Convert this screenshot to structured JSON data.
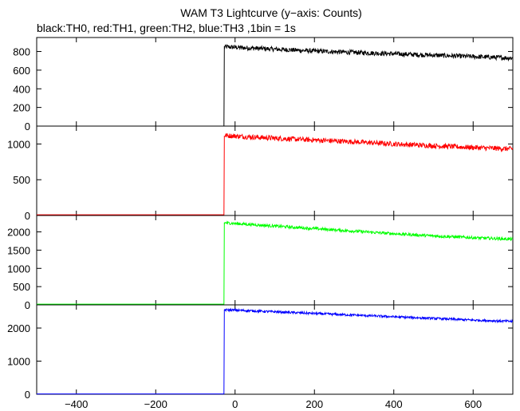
{
  "chart_data": {
    "type": "line",
    "title": "WAM T3 Lightcurve (y−axis: Counts)",
    "subtitle": "black:TH0, red:TH1, green:TH2, blue:TH3 ,1bin = 1s",
    "xlim": [
      -500,
      700
    ],
    "x_ticks": [
      -400,
      -200,
      0,
      200,
      400,
      600
    ],
    "x_tick_labels": [
      "−400",
      "−200",
      "0",
      "200",
      "400",
      "600"
    ],
    "trigger_time": -28,
    "grid": false,
    "series": [
      {
        "name": "TH0",
        "color": "#000000",
        "ylim": [
          0,
          950
        ],
        "y_ticks": [
          0,
          200,
          400,
          600,
          800
        ],
        "baseline": 0,
        "start_value": 850,
        "end_value": 730,
        "noise": 25,
        "x": [
          -500,
          -28,
          -27,
          0,
          100,
          200,
          300,
          400,
          500,
          600,
          700
        ],
        "y": [
          0,
          0,
          850,
          845,
          825,
          805,
          790,
          775,
          760,
          745,
          730
        ]
      },
      {
        "name": "TH1",
        "color": "#ff0000",
        "ylim": [
          0,
          1250
        ],
        "y_ticks": [
          0,
          500,
          1000
        ],
        "baseline": 10,
        "start_value": 1120,
        "end_value": 930,
        "noise": 35,
        "x": [
          -500,
          -28,
          -27,
          0,
          100,
          200,
          300,
          400,
          500,
          600,
          700
        ],
        "y": [
          10,
          10,
          1120,
          1110,
          1080,
          1055,
          1030,
          1000,
          975,
          950,
          930
        ]
      },
      {
        "name": "TH2",
        "color": "#00ff00",
        "ylim": [
          0,
          2450
        ],
        "y_ticks": [
          0,
          500,
          1000,
          1500,
          2000
        ],
        "baseline": 20,
        "start_value": 2250,
        "end_value": 1800,
        "noise": 40,
        "x": [
          -500,
          -28,
          -27,
          0,
          100,
          200,
          300,
          400,
          500,
          600,
          700
        ],
        "y": [
          20,
          20,
          2250,
          2230,
          2160,
          2090,
          2020,
          1950,
          1890,
          1840,
          1800
        ]
      },
      {
        "name": "TH3",
        "color": "#0000ff",
        "ylim": [
          0,
          2700
        ],
        "y_ticks": [
          0,
          1000,
          2000
        ],
        "baseline": 10,
        "start_value": 2550,
        "end_value": 2200,
        "noise": 35,
        "x": [
          -500,
          -28,
          -27,
          0,
          100,
          200,
          300,
          400,
          500,
          600,
          700
        ],
        "y": [
          10,
          10,
          2550,
          2540,
          2490,
          2440,
          2390,
          2340,
          2290,
          2240,
          2200
        ]
      }
    ]
  }
}
